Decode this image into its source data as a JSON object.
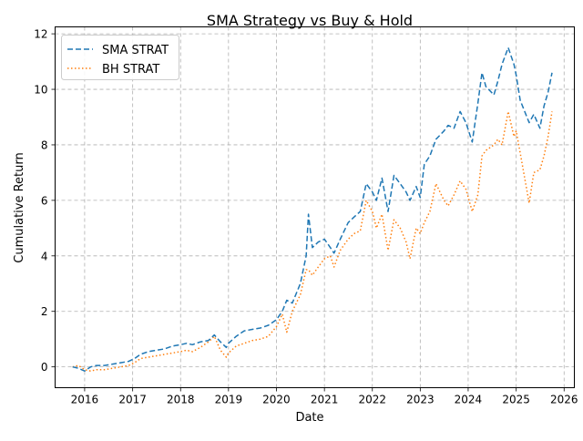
{
  "chart_data": {
    "type": "line",
    "title": "SMA Strategy vs Buy & Hold",
    "xlabel": "Date",
    "ylabel": "Cumulative Return",
    "x_ticks": [
      "2016",
      "2017",
      "2018",
      "2019",
      "2020",
      "2021",
      "2022",
      "2023",
      "2024",
      "2025",
      "2026"
    ],
    "y_ticks": [
      "0",
      "2",
      "4",
      "6",
      "8",
      "10",
      "12"
    ],
    "xlim": [
      "2015-05-21",
      "2026-03-20"
    ],
    "ylim": [
      -0.75,
      12.25
    ],
    "grid": true,
    "legend_position": "upper-left",
    "series": [
      {
        "name": "SMA STRAT",
        "color": "#1f77b4",
        "style": "dashed",
        "x": [
          "2015-10-01",
          "2015-11-15",
          "2016-01-01",
          "2016-02-15",
          "2016-04-01",
          "2016-06-01",
          "2016-08-01",
          "2016-10-01",
          "2016-12-01",
          "2017-01-15",
          "2017-03-01",
          "2017-05-01",
          "2017-07-01",
          "2017-09-01",
          "2017-11-01",
          "2018-01-01",
          "2018-02-15",
          "2018-04-01",
          "2018-06-01",
          "2018-08-01",
          "2018-09-15",
          "2018-11-01",
          "2018-12-15",
          "2019-01-01",
          "2019-03-01",
          "2019-05-01",
          "2019-07-01",
          "2019-09-01",
          "2019-11-01",
          "2020-01-01",
          "2020-02-15",
          "2020-03-20",
          "2020-05-01",
          "2020-07-01",
          "2020-08-15",
          "2020-09-01",
          "2020-10-01",
          "2020-11-15",
          "2021-01-01",
          "2021-02-15",
          "2021-03-15",
          "2021-05-01",
          "2021-07-01",
          "2021-08-15",
          "2021-10-01",
          "2021-11-15",
          "2022-01-01",
          "2022-02-01",
          "2022-03-15",
          "2022-05-01",
          "2022-06-15",
          "2022-08-01",
          "2022-09-15",
          "2022-10-15",
          "2022-12-01",
          "2023-01-01",
          "2023-02-01",
          "2023-03-15",
          "2023-05-01",
          "2023-07-01",
          "2023-08-01",
          "2023-09-15",
          "2023-11-01",
          "2023-12-15",
          "2024-02-01",
          "2024-03-15",
          "2024-04-15",
          "2024-05-15",
          "2024-07-15",
          "2024-08-15",
          "2024-09-15",
          "2024-11-01",
          "2024-12-15",
          "2025-01-01",
          "2025-02-01",
          "2025-04-10",
          "2025-05-15",
          "2025-07-01",
          "2025-08-01",
          "2025-09-01",
          "2025-10-01"
        ],
        "values": [
          0.0,
          -0.05,
          -0.15,
          0.0,
          0.05,
          0.05,
          0.1,
          0.15,
          0.2,
          0.3,
          0.45,
          0.55,
          0.6,
          0.65,
          0.75,
          0.8,
          0.85,
          0.8,
          0.9,
          0.95,
          1.15,
          0.9,
          0.7,
          0.85,
          1.1,
          1.3,
          1.35,
          1.4,
          1.5,
          1.7,
          2.0,
          2.4,
          2.3,
          3.0,
          4.0,
          5.5,
          4.3,
          4.5,
          4.6,
          4.3,
          4.1,
          4.6,
          5.2,
          5.4,
          5.6,
          6.6,
          6.3,
          6.0,
          6.8,
          5.6,
          6.9,
          6.6,
          6.3,
          6.0,
          6.5,
          6.1,
          7.3,
          7.6,
          8.2,
          8.5,
          8.7,
          8.6,
          9.2,
          8.8,
          8.1,
          9.5,
          10.6,
          10.1,
          9.8,
          10.3,
          10.9,
          11.5,
          10.9,
          10.5,
          9.6,
          8.8,
          9.1,
          8.6,
          9.4,
          9.9,
          10.6
        ]
      },
      {
        "name": "BH STRAT",
        "color": "#ff7f0e",
        "style": "dotted",
        "x": [
          "2015-10-01",
          "2015-11-15",
          "2016-01-01",
          "2016-02-15",
          "2016-04-01",
          "2016-06-01",
          "2016-08-01",
          "2016-10-01",
          "2016-12-01",
          "2017-01-15",
          "2017-03-01",
          "2017-05-01",
          "2017-07-01",
          "2017-09-01",
          "2017-11-01",
          "2018-01-01",
          "2018-02-15",
          "2018-04-01",
          "2018-06-01",
          "2018-08-01",
          "2018-09-15",
          "2018-11-01",
          "2018-12-15",
          "2019-01-01",
          "2019-03-01",
          "2019-05-01",
          "2019-07-01",
          "2019-09-01",
          "2019-11-01",
          "2020-01-01",
          "2020-02-15",
          "2020-03-20",
          "2020-05-01",
          "2020-07-01",
          "2020-08-15",
          "2020-09-01",
          "2020-10-01",
          "2020-11-15",
          "2021-01-01",
          "2021-02-15",
          "2021-03-15",
          "2021-05-01",
          "2021-07-01",
          "2021-08-15",
          "2021-10-01",
          "2021-11-15",
          "2022-01-01",
          "2022-02-01",
          "2022-03-15",
          "2022-05-01",
          "2022-06-15",
          "2022-08-01",
          "2022-09-15",
          "2022-10-15",
          "2022-12-01",
          "2023-01-01",
          "2023-02-01",
          "2023-03-15",
          "2023-05-01",
          "2023-07-01",
          "2023-08-01",
          "2023-09-15",
          "2023-11-01",
          "2023-12-15",
          "2024-02-01",
          "2024-03-15",
          "2024-04-15",
          "2024-05-15",
          "2024-07-15",
          "2024-08-15",
          "2024-09-15",
          "2024-11-01",
          "2024-12-15",
          "2025-01-01",
          "2025-02-01",
          "2025-04-10",
          "2025-05-15",
          "2025-07-01",
          "2025-08-01",
          "2025-09-01",
          "2025-10-01"
        ],
        "values": [
          0.0,
          0.05,
          -0.1,
          -0.15,
          -0.1,
          -0.1,
          -0.05,
          0.0,
          0.05,
          0.15,
          0.3,
          0.35,
          0.4,
          0.45,
          0.5,
          0.55,
          0.6,
          0.55,
          0.7,
          0.9,
          1.1,
          0.6,
          0.35,
          0.5,
          0.75,
          0.85,
          0.95,
          1.0,
          1.1,
          1.45,
          1.9,
          1.25,
          2.0,
          2.6,
          3.5,
          3.5,
          3.3,
          3.6,
          3.9,
          4.0,
          3.6,
          4.2,
          4.6,
          4.8,
          4.9,
          6.0,
          5.6,
          5.0,
          5.5,
          4.2,
          5.3,
          5.0,
          4.5,
          3.9,
          5.0,
          4.8,
          5.2,
          5.6,
          6.6,
          6.0,
          5.8,
          6.2,
          6.7,
          6.4,
          5.6,
          6.2,
          7.6,
          7.8,
          8.0,
          8.2,
          8.0,
          9.2,
          8.3,
          8.5,
          7.7,
          5.9,
          7.0,
          7.1,
          7.6,
          8.3,
          9.2
        ]
      }
    ]
  }
}
